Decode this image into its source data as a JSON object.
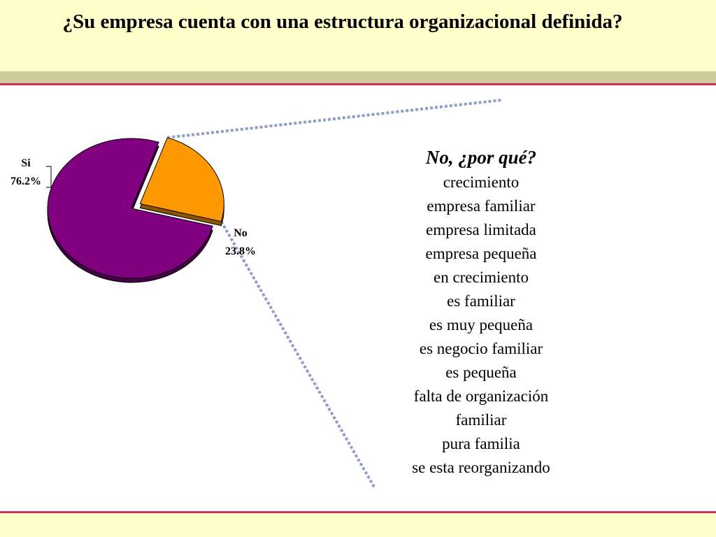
{
  "slide": {
    "title": "¿Su empresa cuenta con una estructura organizacional definida?"
  },
  "colors": {
    "header_bg": "#ffffcc",
    "header_band": "#cccc99",
    "accent_line": "#cc3355",
    "si_slice": "#800080",
    "no_slice": "#ff9900",
    "connector": "#8f9ccc"
  },
  "chart_data": {
    "type": "pie",
    "title": "",
    "categories": [
      "Si",
      "No"
    ],
    "values": [
      76.2,
      23.8
    ],
    "value_labels": [
      "76.2%",
      "23.8%"
    ],
    "exploded": "No",
    "legend": "none",
    "style": "3d"
  },
  "reasons": {
    "heading": "No, ¿por qué?",
    "items": [
      "crecimiento",
      "empresa familiar",
      "empresa limitada",
      "empresa pequeña",
      "en crecimiento",
      "es familiar",
      "es muy pequeña",
      "es negocio familiar",
      "es pequeña",
      "falta de organización",
      "familiar",
      "pura familia",
      "se esta reorganizando"
    ]
  }
}
